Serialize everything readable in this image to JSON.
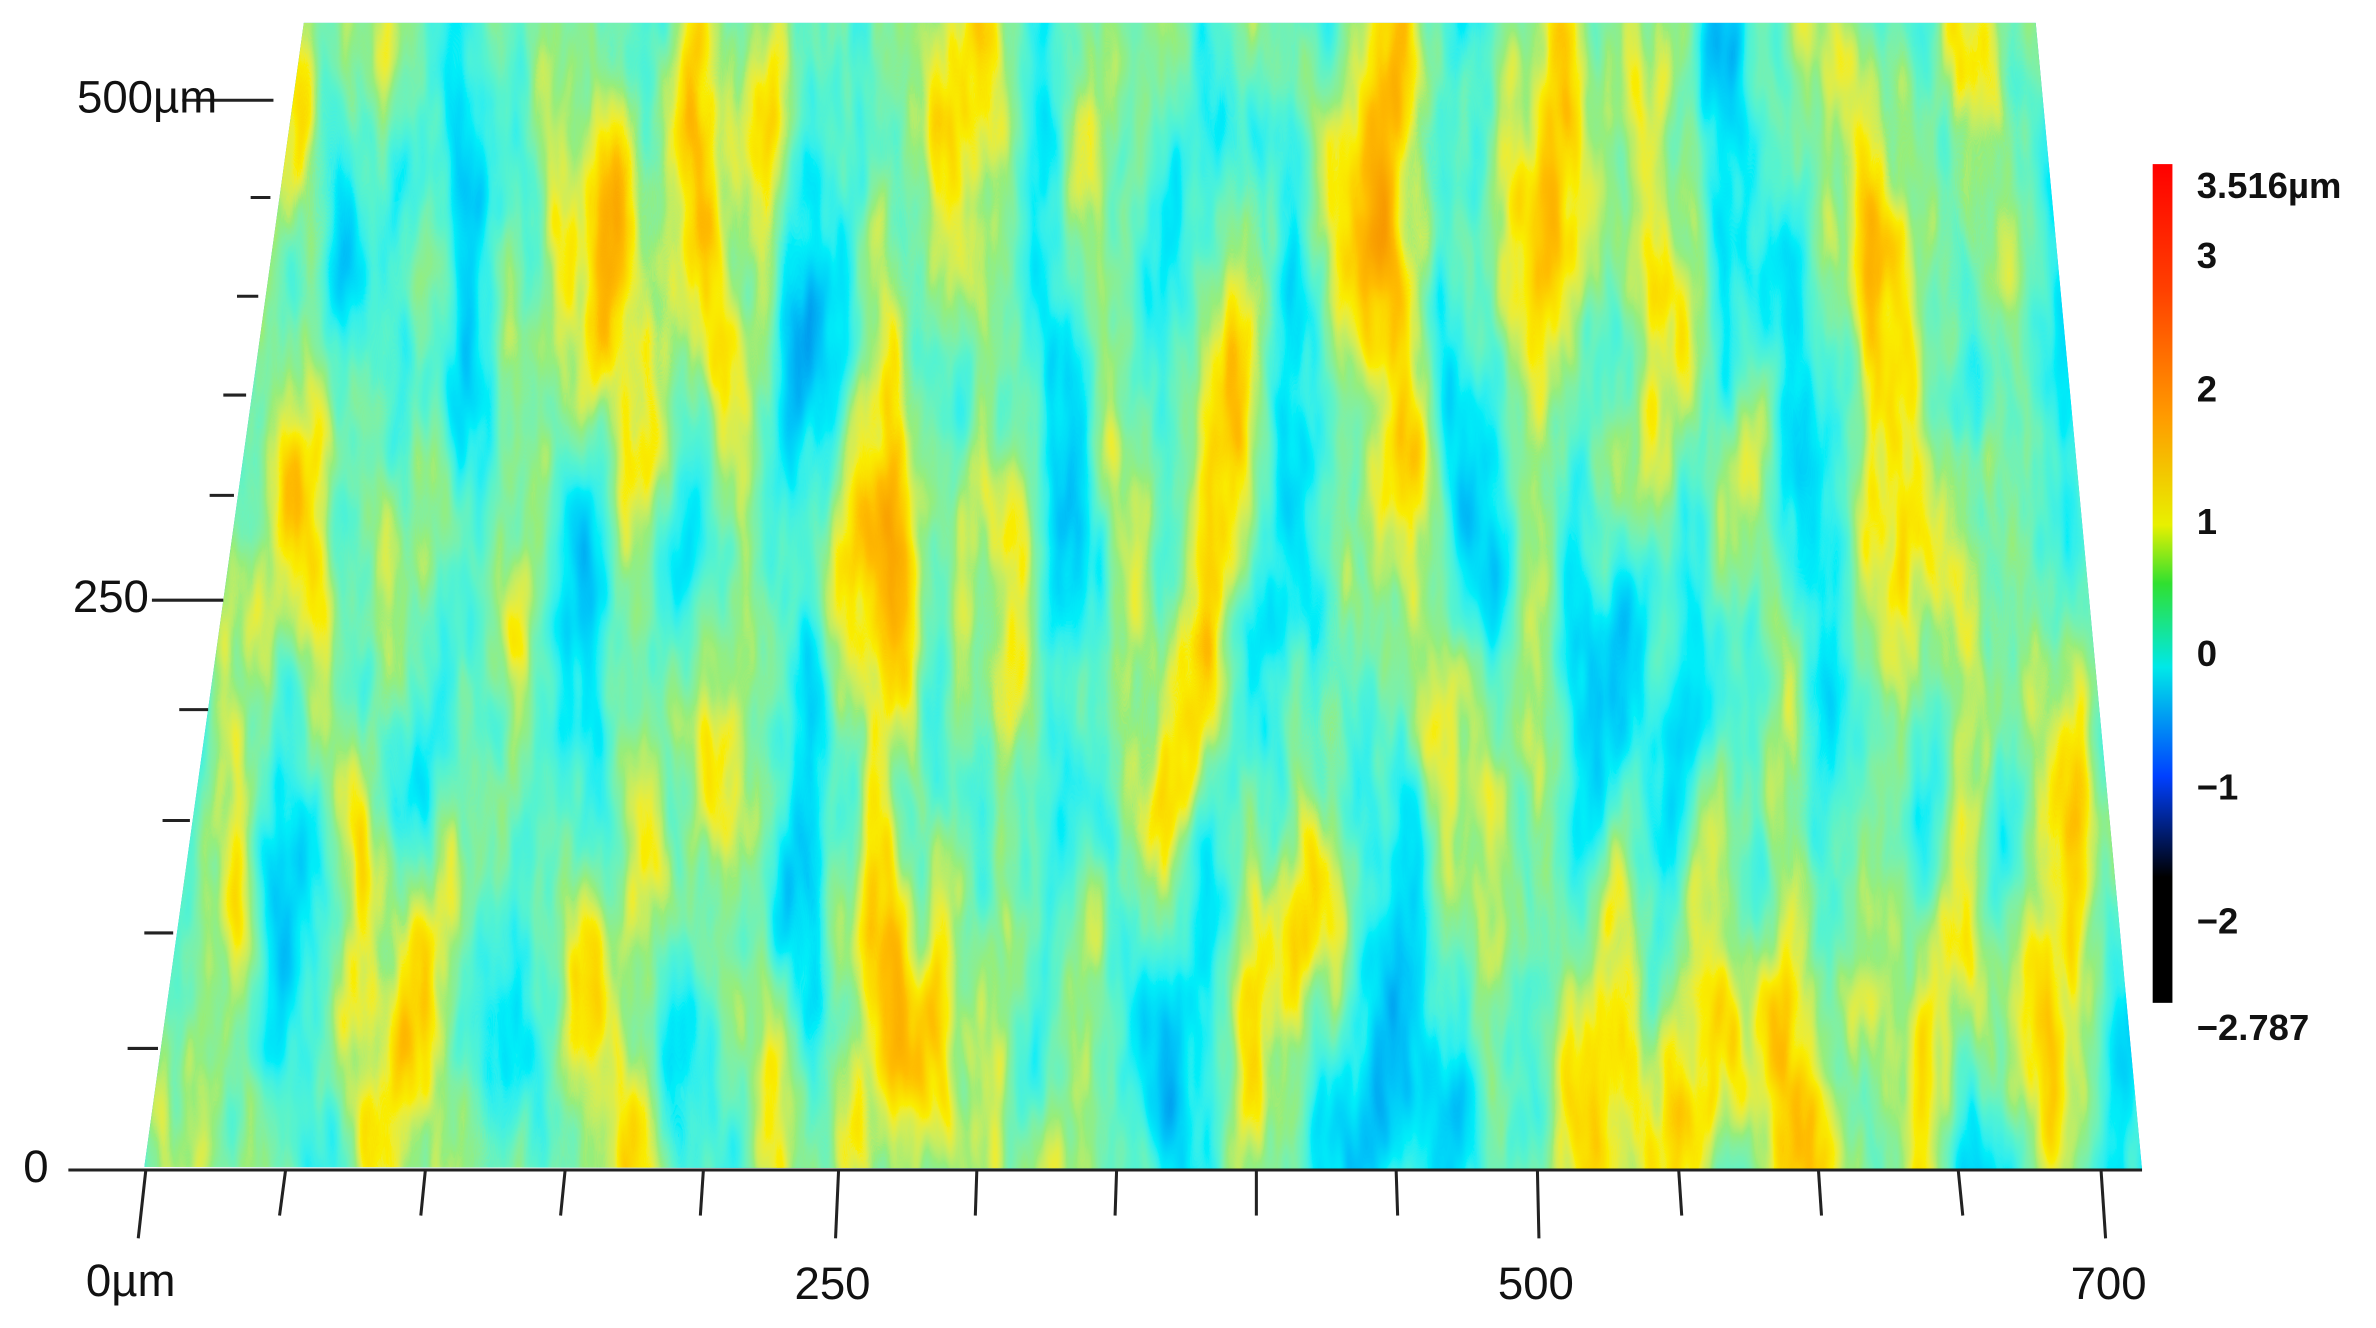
{
  "y_axis": {
    "labels": [
      "500µm",
      "250",
      "0"
    ]
  },
  "x_axis": {
    "labels": [
      "0µm",
      "250",
      "500",
      "700"
    ]
  },
  "colorbar": {
    "labels": [
      "3.516µm",
      "3",
      "2",
      "1",
      "0",
      "−1",
      "−2",
      "−2.787"
    ]
  }
}
